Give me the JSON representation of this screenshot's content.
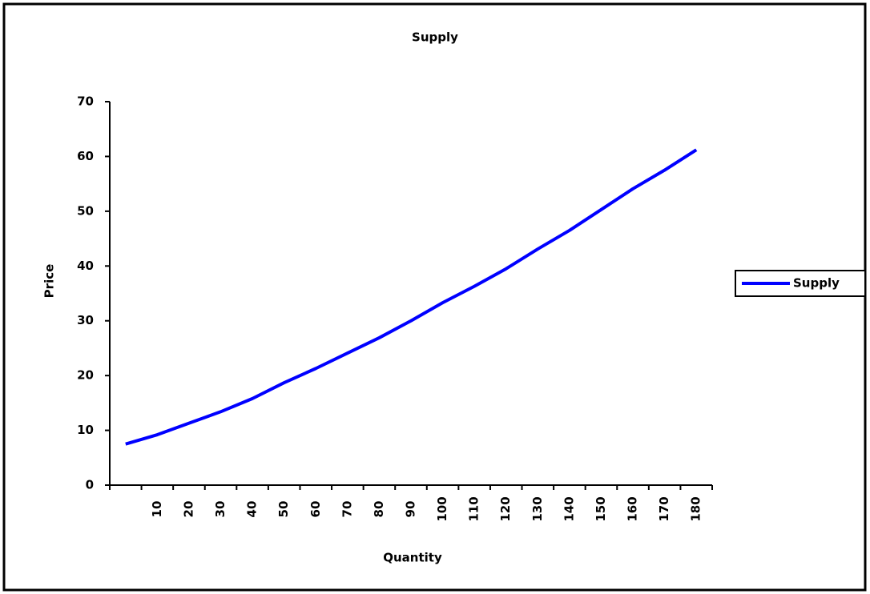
{
  "chart_data": {
    "type": "line",
    "title": "Supply",
    "x_label": "Quantity",
    "y_label": "Price",
    "categories": [
      null,
      "10",
      "20",
      "30",
      "40",
      "50",
      "60",
      "70",
      "80",
      "90",
      "100",
      "110",
      "120",
      "130",
      "140",
      "150",
      "160",
      "170",
      "180"
    ],
    "series": [
      {
        "name": "Supply",
        "color": "#0000ff",
        "values": [
          7.5,
          9.2,
          11.3,
          13.4,
          15.8,
          18.7,
          21.3,
          24.1,
          26.9,
          30,
          33.3,
          36.3,
          39.5,
          43.1,
          46.5,
          50.3,
          54.1,
          57.5,
          61.2
        ]
      }
    ],
    "ylim": [
      0,
      70
    ],
    "yticks": [
      0,
      10,
      20,
      30,
      40,
      50,
      60,
      70
    ],
    "grid": false,
    "legend": "right"
  }
}
